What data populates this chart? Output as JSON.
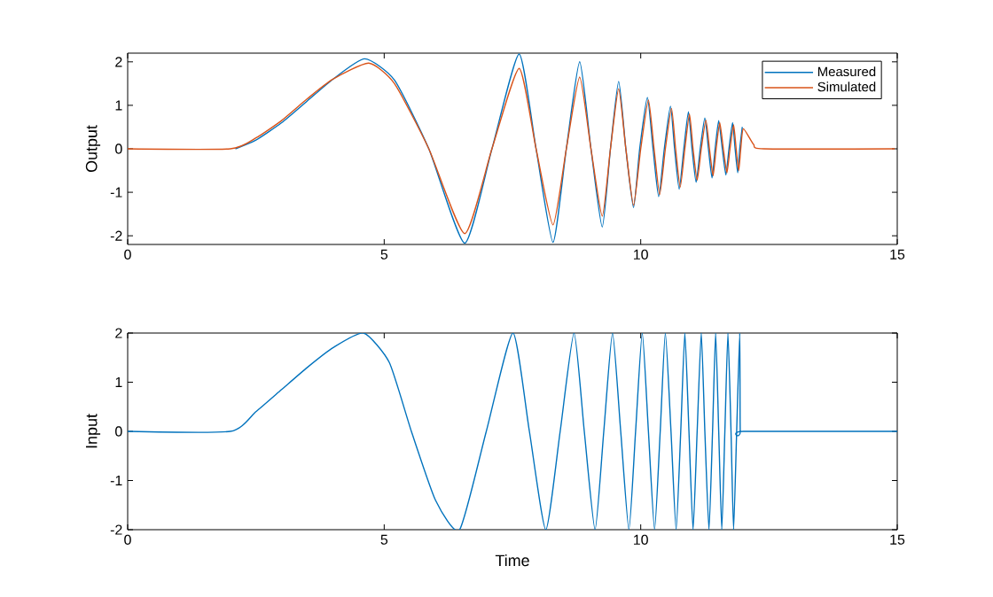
{
  "chart_data": [
    {
      "type": "line",
      "ylabel": "Output",
      "xlim": [
        0,
        15
      ],
      "ylim": [
        -2.2,
        2.2
      ],
      "xticks": [
        0,
        5,
        10,
        15
      ],
      "yticks": [
        -2,
        -1,
        0,
        1,
        2
      ],
      "legend": "top right",
      "grid": false,
      "series": [
        {
          "name": "Measured",
          "color": "#0072bd",
          "x": [
            2.1,
            2.5,
            3,
            3.5,
            4,
            4.62,
            5.2,
            5.87,
            6.57,
            7.1,
            7.63,
            7.96,
            8.29,
            8.55,
            8.81,
            9.03,
            9.25,
            9.41,
            9.57,
            9.71,
            9.86,
            9.98,
            10.13,
            10.24,
            10.35,
            10.46,
            10.58,
            10.66,
            10.75,
            10.84,
            10.93,
            11.0,
            11.08,
            11.16,
            11.25,
            11.32,
            11.39,
            11.45,
            11.52,
            11.59,
            11.66,
            11.72,
            11.79,
            11.84,
            11.89,
            11.93,
            11.98
          ],
          "values": [
            0,
            0.2,
            0.6,
            1.1,
            1.6,
            2.07,
            1.58,
            0,
            -2.17,
            0,
            2.18,
            0,
            -2.15,
            0,
            2.0,
            0,
            -1.8,
            0,
            1.55,
            0,
            -1.35,
            0,
            1.18,
            0,
            -1.1,
            0,
            0.98,
            0,
            -0.93,
            0,
            0.85,
            0,
            -0.77,
            0,
            0.71,
            0,
            -0.67,
            0,
            0.65,
            0,
            -0.6,
            0,
            0.6,
            0,
            -0.55,
            0,
            0.5
          ]
        },
        {
          "name": "Simulated",
          "color": "#d95319",
          "x": [
            0,
            2.0,
            2.5,
            3,
            3.5,
            4,
            4.7,
            5.2,
            5.87,
            6.57,
            7.1,
            7.63,
            7.96,
            8.29,
            8.55,
            8.81,
            9.03,
            9.25,
            9.41,
            9.57,
            9.71,
            9.86,
            10.0,
            10.15,
            10.26,
            10.37,
            10.48,
            10.6,
            10.68,
            10.77,
            10.86,
            10.95,
            11.02,
            11.1,
            11.18,
            11.27,
            11.34,
            11.41,
            11.47,
            11.54,
            11.61,
            11.68,
            11.74,
            11.81,
            11.86,
            11.91,
            11.95,
            12.0,
            12.2,
            12.4,
            14.95
          ],
          "values": [
            0,
            0,
            0.25,
            0.65,
            1.15,
            1.6,
            1.97,
            1.5,
            0,
            -1.95,
            0,
            1.85,
            0,
            -1.75,
            0,
            1.65,
            0,
            -1.55,
            0,
            1.38,
            0,
            -1.3,
            0,
            1.12,
            0,
            -1.05,
            0,
            0.93,
            0,
            -0.88,
            0,
            0.8,
            0,
            -0.72,
            0,
            0.66,
            0,
            -0.62,
            0,
            0.6,
            0,
            -0.55,
            0,
            0.55,
            0,
            -0.5,
            0,
            0.46,
            0.1,
            0,
            0
          ]
        }
      ]
    },
    {
      "type": "line",
      "xlabel": "Time",
      "ylabel": "Input",
      "xlim": [
        0,
        15
      ],
      "ylim": [
        -2,
        2
      ],
      "xticks": [
        0,
        5,
        10,
        15
      ],
      "yticks": [
        -2,
        -1,
        0,
        1,
        2
      ],
      "grid": false,
      "series": [
        {
          "color": "#0072bd",
          "x": [
            0,
            2,
            2.5,
            3,
            3.5,
            4,
            4.6,
            5.1,
            5.53,
            6.0,
            6.47,
            6.99,
            7.51,
            7.83,
            8.15,
            8.43,
            8.7,
            8.9,
            9.11,
            9.28,
            9.45,
            9.61,
            9.77,
            9.9,
            10.03,
            10.15,
            10.27,
            10.38,
            10.48,
            10.59,
            10.69,
            10.78,
            10.86,
            10.94,
            11.02,
            11.1,
            11.18,
            11.25,
            11.33,
            11.4,
            11.46,
            11.52,
            11.58,
            11.64,
            11.7,
            11.76,
            11.81,
            11.87,
            11.93,
            11.94,
            12.0,
            15
          ],
          "values": [
            0,
            0,
            0.4,
            0.85,
            1.3,
            1.7,
            2,
            1.4,
            0,
            -1.4,
            -2,
            0,
            2,
            0,
            -2,
            0,
            2,
            0,
            -2,
            0,
            2,
            0,
            -2,
            0,
            2,
            0,
            -2,
            0,
            2,
            0,
            -2,
            0,
            2,
            0,
            -2,
            0,
            2,
            0,
            -2,
            0,
            2,
            0,
            -2,
            0,
            2,
            0,
            -2,
            0,
            2,
            0,
            0,
            0
          ]
        }
      ]
    }
  ]
}
